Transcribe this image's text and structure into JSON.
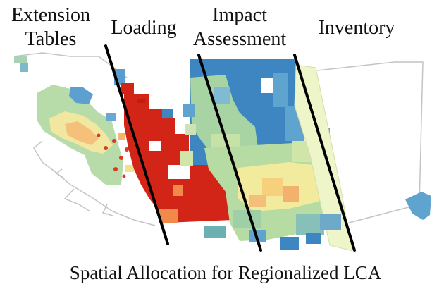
{
  "labels": {
    "extension_line1": "Extension",
    "extension_line2": "Tables",
    "loading": "Loading",
    "impact_line1": "Impact",
    "impact_line2": "Assessment",
    "inventory": "Inventory",
    "caption": "Spatial Allocation for Regionalized LCA"
  },
  "colors": {
    "loading_red": "#d32418",
    "impact_blue": "#3d86c2",
    "impact_lightblue": "#5fa3cf",
    "impact_green": "#a8d3a3",
    "impact_yellow": "#f2ea9c",
    "impact_orange": "#f3b16e",
    "inventory_pale": "#eef5c9",
    "map_border": "#bdbdbd",
    "separator": "#000000"
  }
}
